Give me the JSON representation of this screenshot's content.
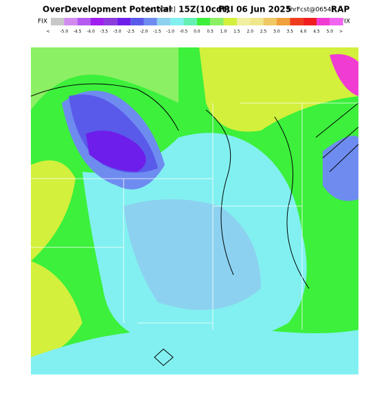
{
  "header": {
    "title_parts": [
      "OverDevelopment Potential",
      "[x1000ft]",
      "15Z(10cdt)",
      "FRI 06 Jun 2025",
      "9hrFcst@0654z",
      "RAP"
    ],
    "fix_left": "FIX",
    "fix_right": "FIX"
  },
  "colorbar": {
    "low_end": "<",
    "high_end": ">",
    "labels": [
      "-5.0",
      "-4.5",
      "-4.0",
      "-3.5",
      "-3.0",
      "-2.5",
      "-2.0",
      "-1.5",
      "-1.0",
      "-0.5",
      "0.0",
      "0.5",
      "1.0",
      "1.5",
      "2.0",
      "2.5",
      "3.0",
      "3.5",
      "4.0",
      "4.5",
      "5.0"
    ],
    "colors": [
      "#c8c8c8",
      "#d28cf0",
      "#b45af0",
      "#a01ef0",
      "#8c3cdc",
      "#6e1eea",
      "#5a5aea",
      "#6e8cf0",
      "#8cd2f0",
      "#82f0f0",
      "#64f0b4",
      "#3cf03c",
      "#8cf064",
      "#d2f03c",
      "#f0f0a0",
      "#f0e68c",
      "#f0c864",
      "#f0a03c",
      "#f03c1e",
      "#f01e1e",
      "#f03cd2",
      "#f064f0"
    ]
  }
}
